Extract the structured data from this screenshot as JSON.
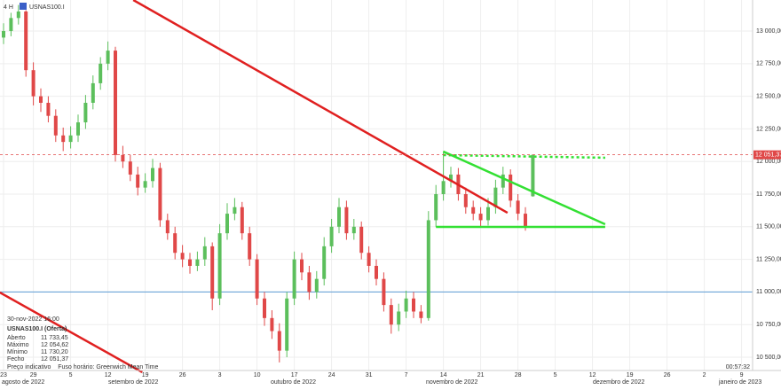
{
  "chart_data": {
    "type": "candlestick",
    "timeframe": "4 H",
    "symbol": "USNAS100.I",
    "info": {
      "date": "30-nov-2022 16:00",
      "instrument": "USNAS100.I (Oferta)",
      "rows": [
        [
          "Aberto",
          "11 733,45"
        ],
        [
          "Máximo",
          "12 054,62"
        ],
        [
          "Mínimo",
          "11 730,20"
        ],
        [
          "Fecho",
          "12 051,37"
        ]
      ]
    },
    "footer": "Preço indicativo    Fuso horário: Greenwich Mean Time",
    "clock": "00:57:32",
    "up_color": "#5cbf5c",
    "down_color": "#e04848",
    "grid": true,
    "ylim": [
      10398,
      13238
    ],
    "yticks": [
      {
        "value": 10500,
        "label": "10 500,00"
      },
      {
        "value": 10750,
        "label": "10 750,00"
      },
      {
        "value": 11000,
        "label": "11 000,00"
      },
      {
        "value": 11250,
        "label": "11 250,00"
      },
      {
        "value": 11500,
        "label": "11 500,00"
      },
      {
        "value": 11750,
        "label": "11 750,00"
      },
      {
        "value": 12000,
        "label": "12 000,00"
      },
      {
        "value": 12250,
        "label": "12 250,00"
      },
      {
        "value": 12500,
        "label": "12 500,00"
      },
      {
        "value": 12750,
        "label": "12 750,00"
      },
      {
        "value": 13000,
        "label": "13 000,00"
      }
    ],
    "last_price": 12051.37,
    "last_price_label": "12 051,37",
    "months": [
      "agosto de 2022",
      "setembro de 2022",
      "outubro de 2022",
      "novembro de 2022",
      "dezembro de 2022",
      "janeiro de 2023"
    ],
    "categories": [
      "23",
      null,
      null,
      null,
      "29",
      null,
      null,
      null,
      null,
      "5",
      null,
      null,
      null,
      null,
      "12",
      null,
      null,
      null,
      null,
      "19",
      null,
      null,
      null,
      null,
      "26",
      null,
      null,
      null,
      null,
      "3",
      null,
      null,
      null,
      null,
      "10",
      null,
      null,
      null,
      null,
      "17",
      null,
      null,
      null,
      null,
      "24",
      null,
      null,
      null,
      null,
      "31",
      null,
      null,
      null,
      null,
      "7",
      null,
      null,
      null,
      null,
      "14",
      null,
      null,
      null,
      null,
      "21",
      null,
      null,
      null,
      null,
      "28",
      null,
      null,
      null,
      null,
      "5",
      null,
      null,
      null,
      null,
      "12",
      null,
      null,
      null,
      null,
      "19",
      null,
      null,
      null,
      null,
      "26",
      null,
      null,
      null,
      null,
      "2",
      null,
      null,
      null,
      null,
      "9",
      null
    ],
    "values": [
      [
        12950,
        13060,
        12900,
        13000
      ],
      [
        13000,
        13140,
        12960,
        13100
      ],
      [
        13100,
        13200,
        13050,
        13150
      ],
      [
        13150,
        13160,
        12650,
        12700
      ],
      [
        12700,
        12760,
        12430,
        12500
      ],
      [
        12500,
        12560,
        12380,
        12450
      ],
      [
        12450,
        12500,
        12300,
        12350
      ],
      [
        12350,
        12400,
        12150,
        12200
      ],
      [
        12200,
        12260,
        12080,
        12150
      ],
      [
        12150,
        12270,
        12100,
        12200
      ],
      [
        12200,
        12360,
        12150,
        12300
      ],
      [
        12300,
        12510,
        12250,
        12450
      ],
      [
        12450,
        12660,
        12400,
        12600
      ],
      [
        12600,
        12800,
        12550,
        12750
      ],
      [
        12750,
        12920,
        12700,
        12850
      ],
      [
        12850,
        12880,
        12000,
        12050
      ],
      [
        12050,
        12120,
        11950,
        12000
      ],
      [
        12000,
        12050,
        11850,
        11900
      ],
      [
        11900,
        11960,
        11740,
        11800
      ],
      [
        11800,
        11910,
        11760,
        11850
      ],
      [
        11850,
        12020,
        11800,
        11950
      ],
      [
        11950,
        11990,
        11500,
        11550
      ],
      [
        11550,
        11600,
        11400,
        11450
      ],
      [
        11450,
        11500,
        11250,
        11300
      ],
      [
        11300,
        11360,
        11190,
        11250
      ],
      [
        11250,
        11300,
        11140,
        11200
      ],
      [
        11200,
        11310,
        11160,
        11250
      ],
      [
        11250,
        11420,
        11200,
        11350
      ],
      [
        11350,
        11380,
        10860,
        10950
      ],
      [
        10950,
        11520,
        10900,
        11450
      ],
      [
        11450,
        11680,
        11400,
        11600
      ],
      [
        11600,
        11720,
        11550,
        11650
      ],
      [
        11650,
        11690,
        11400,
        11450
      ],
      [
        11450,
        11500,
        11200,
        11250
      ],
      [
        11250,
        11290,
        10900,
        10950
      ],
      [
        10950,
        11000,
        10740,
        10800
      ],
      [
        10800,
        10860,
        10640,
        10700
      ],
      [
        10700,
        10760,
        10460,
        10550
      ],
      [
        10550,
        11000,
        10500,
        10950
      ],
      [
        10950,
        11310,
        10900,
        11250
      ],
      [
        11250,
        11300,
        11090,
        11150
      ],
      [
        11150,
        11200,
        10940,
        11000
      ],
      [
        11000,
        11160,
        10950,
        11100
      ],
      [
        11100,
        11420,
        11050,
        11350
      ],
      [
        11350,
        11560,
        11300,
        11500
      ],
      [
        11500,
        11720,
        11450,
        11650
      ],
      [
        11650,
        11700,
        11400,
        11450
      ],
      [
        11450,
        11560,
        11400,
        11500
      ],
      [
        11500,
        11540,
        11250,
        11300
      ],
      [
        11300,
        11350,
        11150,
        11200
      ],
      [
        11200,
        11250,
        11050,
        11100
      ],
      [
        11100,
        11150,
        10850,
        10900
      ],
      [
        10900,
        10950,
        10680,
        10750
      ],
      [
        10750,
        10910,
        10700,
        10850
      ],
      [
        10850,
        11010,
        10800,
        10950
      ],
      [
        10950,
        11000,
        10800,
        10850
      ],
      [
        10850,
        10900,
        10760,
        10800
      ],
      [
        10800,
        11620,
        10780,
        11550
      ],
      [
        11550,
        11820,
        11500,
        11750
      ],
      [
        11750,
        12080,
        11700,
        11850
      ],
      [
        11850,
        11960,
        11800,
        11900
      ],
      [
        11900,
        11950,
        11700,
        11750
      ],
      [
        11750,
        11800,
        11600,
        11650
      ],
      [
        11650,
        11700,
        11550,
        11600
      ],
      [
        11600,
        11650,
        11500,
        11550
      ],
      [
        11550,
        11720,
        11510,
        11650
      ],
      [
        11650,
        11860,
        11600,
        11800
      ],
      [
        11800,
        11960,
        11750,
        11900
      ],
      [
        11900,
        11940,
        11650,
        11700
      ],
      [
        11700,
        11750,
        11550,
        11600
      ],
      [
        11600,
        11650,
        11470,
        11500
      ],
      [
        11733.45,
        12054.62,
        11730.2,
        12051.37
      ],
      null,
      null,
      null,
      null,
      null,
      null,
      null,
      null,
      null,
      null,
      null,
      null,
      null,
      null,
      null,
      null,
      null,
      null,
      null,
      null,
      null,
      null,
      null,
      null,
      null,
      null,
      null,
      null,
      null
    ],
    "hlines": [
      {
        "value": 11000,
        "color": "#5b9bd5"
      }
    ],
    "drawings": [
      {
        "color": "#e02020",
        "dashed": false,
        "x": [
          17.4,
          67.6
        ],
        "y": [
          13238,
          11607
        ]
      },
      {
        "color": "#e02020",
        "dashed": false,
        "x": [
          -0.5,
          18.6
        ],
        "y": [
          10996,
          10385
        ]
      },
      {
        "color": "#33e033",
        "dashed": false,
        "x": [
          59,
          80.7
        ],
        "y": [
          12076,
          11519
        ]
      },
      {
        "color": "#33e033",
        "dashed": false,
        "x": [
          58,
          80.7
        ],
        "y": [
          11499,
          11499
        ]
      },
      {
        "color": "#33e033",
        "dashed": true,
        "x": [
          59,
          80.7
        ],
        "y": [
          12049,
          12029
        ]
      }
    ]
  }
}
